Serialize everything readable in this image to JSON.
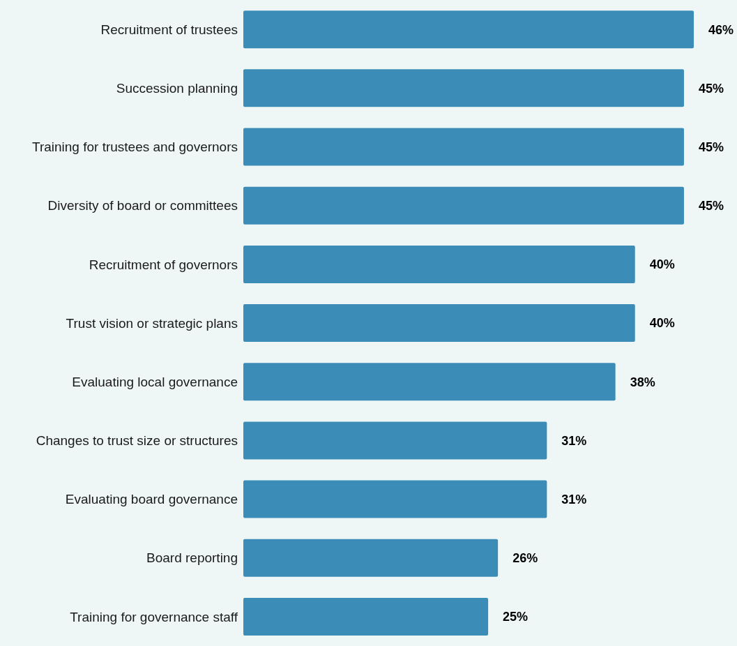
{
  "chart_data": {
    "type": "bar",
    "orientation": "horizontal",
    "categories": [
      "Recruitment of trustees",
      "Succession planning",
      "Training for trustees and governors",
      "Diversity of board or committees",
      "Recruitment of governors",
      "Trust vision or strategic plans",
      "Evaluating local governance",
      "Changes to trust size or structures",
      "Evaluating board governance",
      "Board reporting",
      "Training for governance staff"
    ],
    "values": [
      46,
      45,
      45,
      45,
      40,
      40,
      38,
      31,
      31,
      26,
      25
    ],
    "value_labels": [
      "46%",
      "45%",
      "45%",
      "45%",
      "40%",
      "40%",
      "38%",
      "31%",
      "31%",
      "26%",
      "25%"
    ],
    "color": "#3b8db8",
    "grid": false,
    "legend": false
  }
}
